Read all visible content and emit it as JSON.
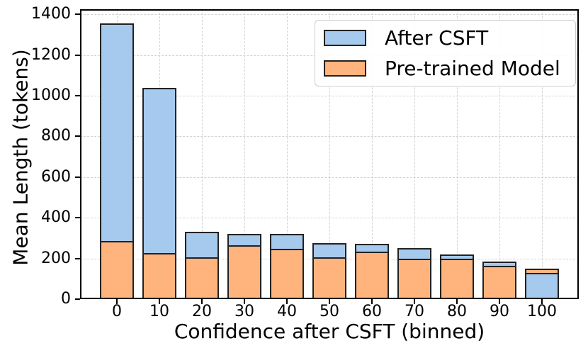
{
  "chart_data": {
    "type": "bar",
    "mode": "overlay-shorter-in-front",
    "title": "",
    "xlabel": "Confidence after CSFT (binned)",
    "ylabel": "Mean Length (tokens)",
    "categories": [
      "0",
      "10",
      "20",
      "30",
      "40",
      "50",
      "60",
      "70",
      "80",
      "90",
      "100"
    ],
    "series": [
      {
        "name": "After CSFT",
        "color": "#a6c9ee",
        "values": [
          1355,
          1040,
          330,
          320,
          319,
          275,
          273,
          250,
          219,
          183,
          129
        ]
      },
      {
        "name": "Pre-trained Model",
        "color": "#ffb47d",
        "values": [
          286,
          226,
          205,
          266,
          246,
          206,
          234,
          200,
          197,
          165,
          149
        ]
      }
    ],
    "ylim": [
      0,
      1425
    ],
    "yticks": [
      0,
      200,
      400,
      600,
      800,
      1000,
      1200,
      1400
    ],
    "grid": true,
    "grid_style": "dashed",
    "legend_position": "upper right",
    "bar_edge_color": "#222222",
    "spine_color": "#000000",
    "background_color": "#ffffff"
  }
}
